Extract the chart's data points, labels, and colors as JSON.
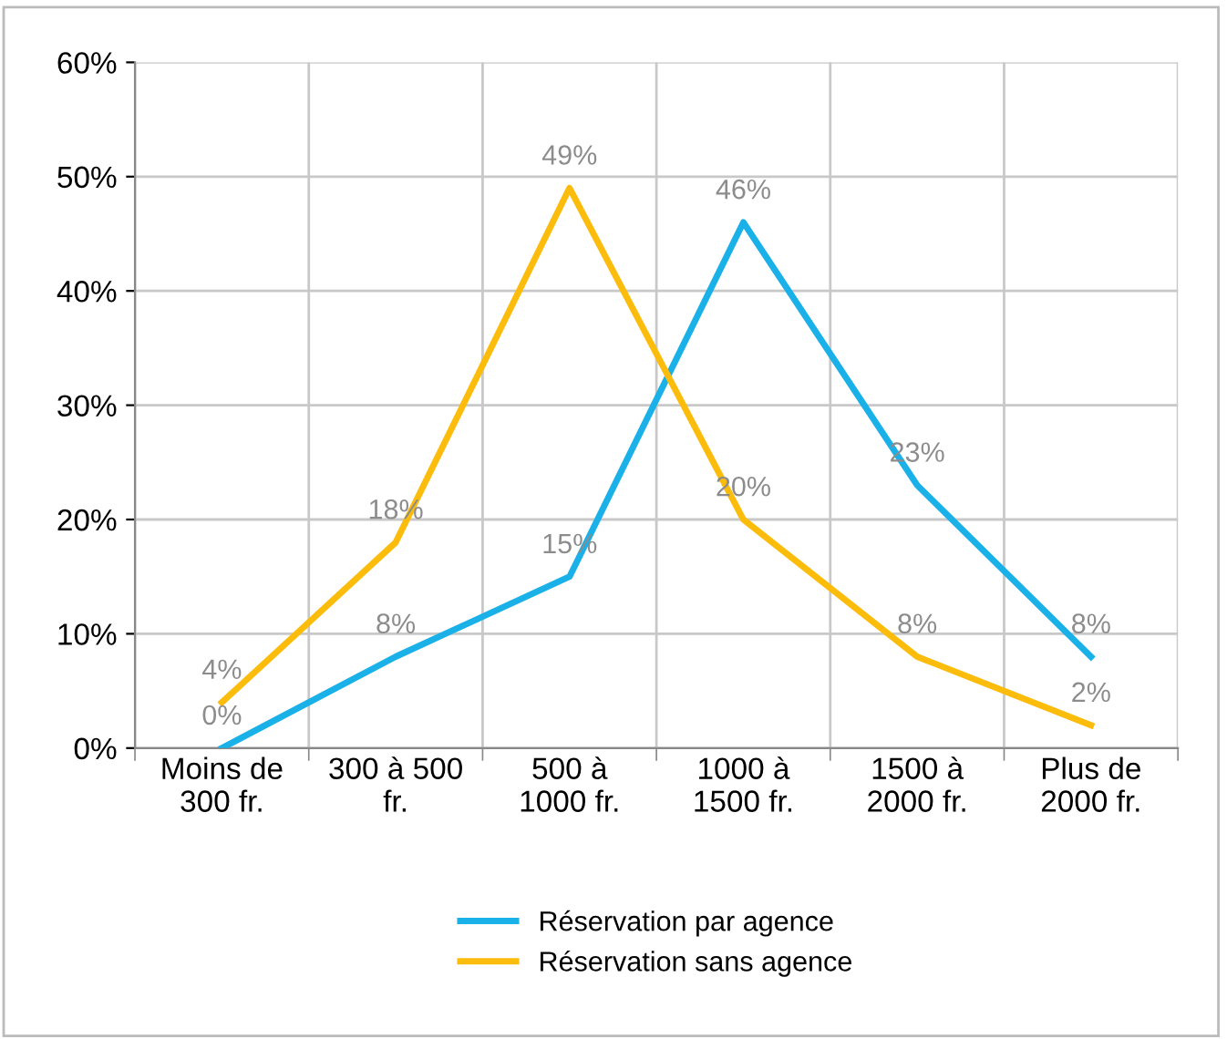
{
  "chart_data": {
    "type": "line",
    "categories": [
      "Moins de\n300 fr.",
      "300 à 500\nfr.",
      "500 à\n1000 fr.",
      "1000 à\n1500 fr.",
      "1500 à\n2000 fr.",
      "Plus de\n2000 fr."
    ],
    "series": [
      {
        "name": "Réservation par agence",
        "color": "#1ab0e8",
        "values": [
          0,
          8,
          15,
          46,
          23,
          8
        ],
        "value_labels": [
          "0%",
          "8%",
          "15%",
          "46%",
          "23%",
          "8%"
        ]
      },
      {
        "name": "Réservation sans agence",
        "color": "#fcbc0c",
        "values": [
          4,
          18,
          49,
          20,
          8,
          2
        ],
        "value_labels": [
          "4%",
          "18%",
          "49%",
          "20%",
          "8%",
          "2%"
        ]
      }
    ],
    "ylim": [
      0,
      60
    ],
    "yticks": [
      {
        "value": 0,
        "label": "0%"
      },
      {
        "value": 10,
        "label": "10%"
      },
      {
        "value": 20,
        "label": "20%"
      },
      {
        "value": 30,
        "label": "30%"
      },
      {
        "value": 40,
        "label": "40%"
      },
      {
        "value": 50,
        "label": "50%"
      },
      {
        "value": 60,
        "label": "60%"
      }
    ],
    "grid": true,
    "legend": "bottom",
    "marker": "none",
    "line_style": "solid"
  }
}
